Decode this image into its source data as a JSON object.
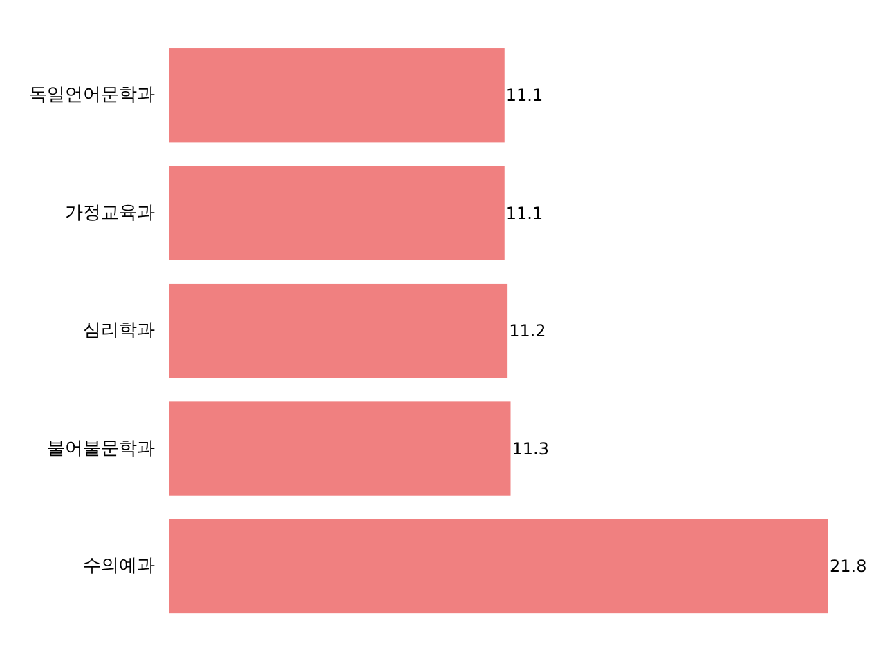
{
  "chart_data": {
    "type": "bar",
    "orientation": "horizontal",
    "categories": [
      "독일언어문학과",
      "가정교육과",
      "심리학과",
      "불어불문학과",
      "수의예과"
    ],
    "values": [
      11.1,
      11.1,
      11.2,
      11.3,
      21.8
    ],
    "color": "#f08080",
    "data_labels": true
  }
}
